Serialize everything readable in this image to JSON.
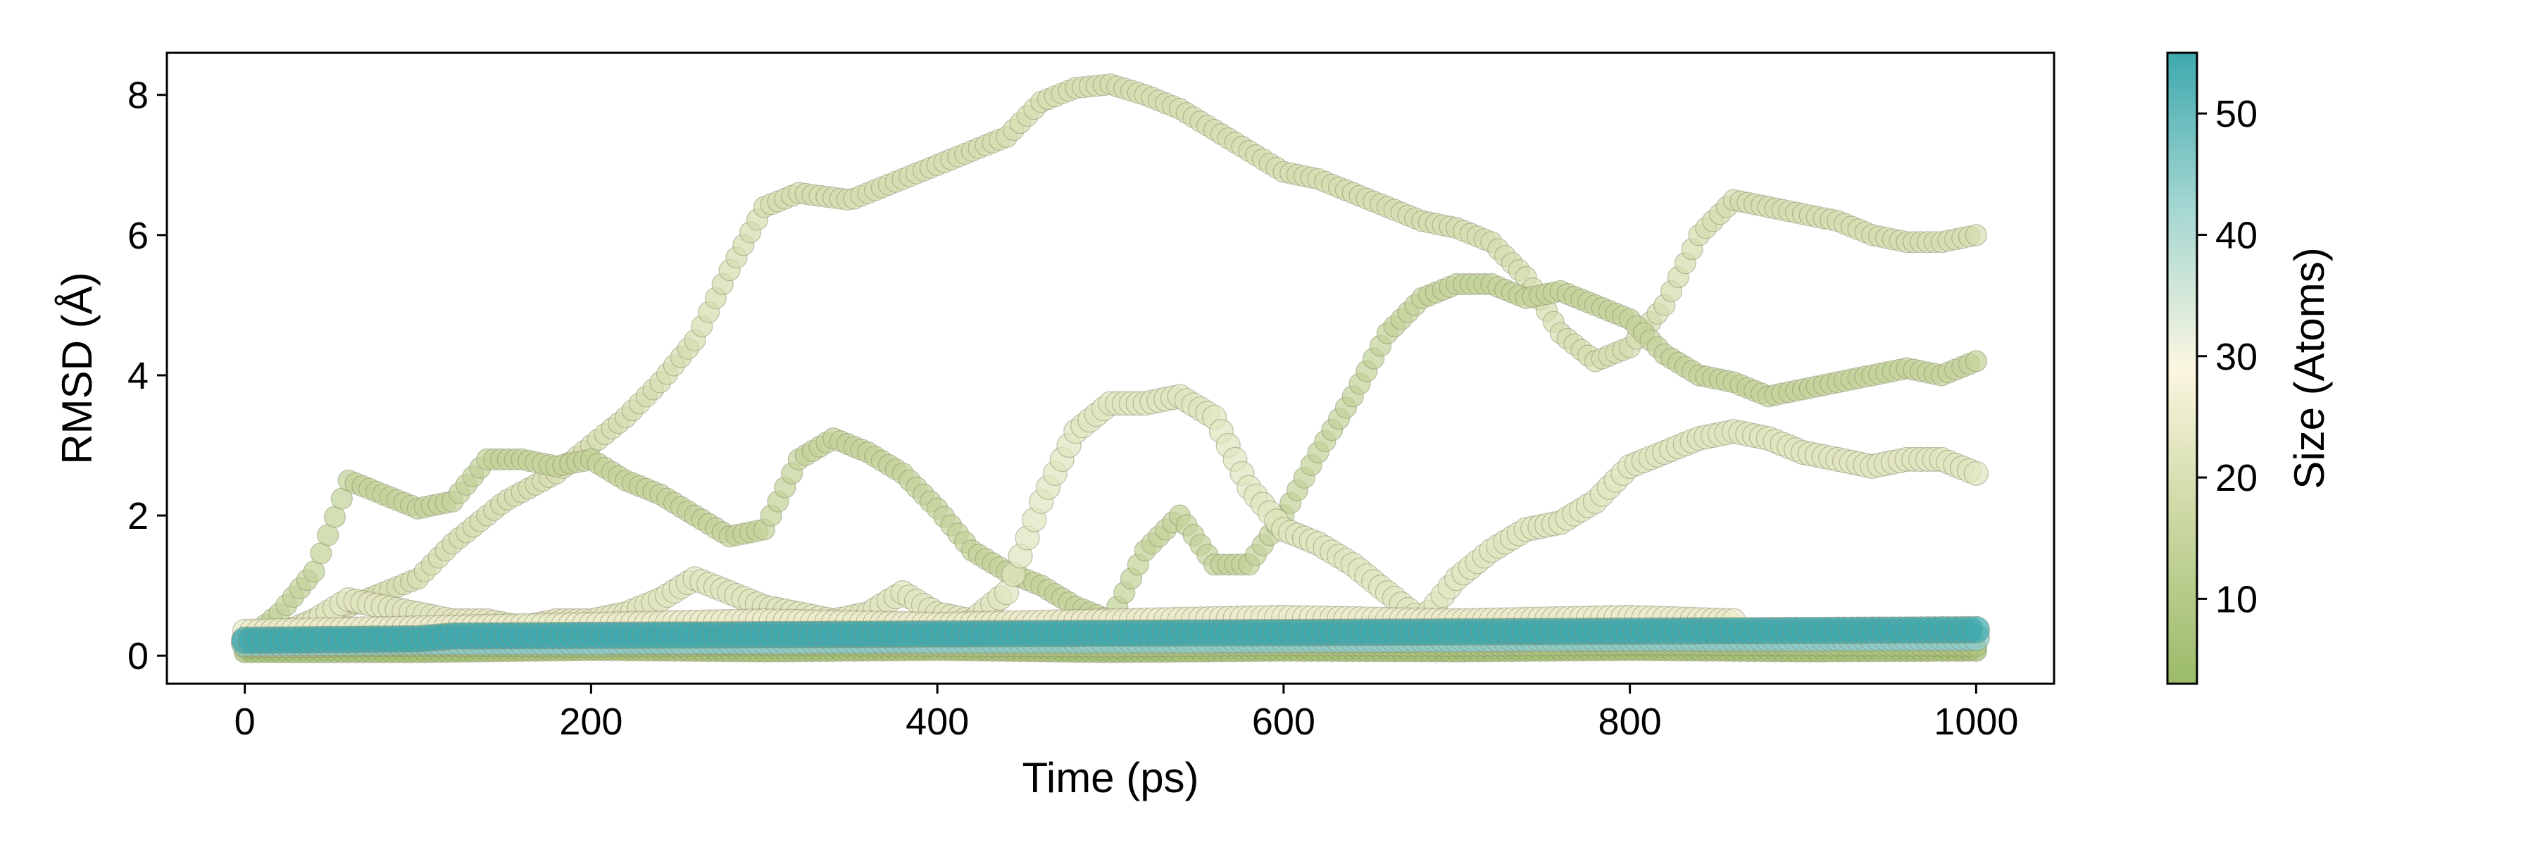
{
  "chart_data": {
    "type": "scatter",
    "title": "",
    "xlabel": "Time (ps)",
    "ylabel": "RMSD (Å)",
    "xlim": [
      -45,
      1045
    ],
    "ylim": [
      -0.4,
      8.6
    ],
    "xticks": [
      0,
      200,
      400,
      600,
      800,
      1000
    ],
    "yticks": [
      0,
      2,
      4,
      6,
      8
    ],
    "grid": false,
    "legend": "none",
    "colorbar": {
      "label": "Size (Atoms)",
      "range": [
        3,
        55
      ],
      "ticks": [
        10,
        20,
        30,
        40,
        50
      ],
      "colors": [
        "#9bbb6a",
        "#c9d6a0",
        "#fbf6e0",
        "#a6d7d2",
        "#3ea9ae"
      ]
    },
    "series": [
      {
        "size": 19,
        "x": [
          0,
          20,
          40,
          60,
          80,
          100,
          120,
          150,
          180,
          200,
          220,
          240,
          260,
          280,
          300,
          320,
          350,
          380,
          400,
          420,
          440,
          460,
          480,
          500,
          520,
          540,
          560,
          580,
          600,
          620,
          640,
          660,
          680,
          700,
          720,
          740,
          760,
          780,
          800,
          820,
          840,
          860,
          880,
          900,
          920,
          940,
          960,
          980,
          1000
        ],
        "y": [
          0.2,
          0.3,
          0.5,
          0.7,
          0.9,
          1.1,
          1.6,
          2.2,
          2.6,
          3.0,
          3.4,
          3.9,
          4.5,
          5.5,
          6.4,
          6.6,
          6.5,
          6.8,
          7.0,
          7.2,
          7.4,
          7.9,
          8.1,
          8.15,
          8.0,
          7.8,
          7.5,
          7.2,
          6.9,
          6.8,
          6.6,
          6.4,
          6.2,
          6.1,
          5.9,
          5.4,
          4.6,
          4.2,
          4.4,
          5.0,
          6.0,
          6.5,
          6.4,
          6.3,
          6.2,
          6.0,
          5.9,
          5.9,
          6.0
        ]
      },
      {
        "size": 14,
        "x": [
          0,
          20,
          40,
          60,
          80,
          100,
          120,
          140,
          160,
          180,
          200,
          220,
          240,
          260,
          280,
          300,
          320,
          340,
          360,
          380,
          400,
          420,
          440,
          460,
          480,
          500,
          520,
          540,
          560,
          580,
          600,
          620,
          640,
          660,
          680,
          700,
          720,
          740,
          760,
          780,
          800,
          820,
          840,
          860,
          880,
          900,
          920,
          940,
          960,
          980,
          1000
        ],
        "y": [
          0.2,
          0.6,
          1.2,
          2.5,
          2.3,
          2.1,
          2.2,
          2.8,
          2.8,
          2.7,
          2.8,
          2.5,
          2.3,
          2.0,
          1.7,
          1.8,
          2.8,
          3.1,
          2.9,
          2.6,
          2.1,
          1.5,
          1.2,
          1.0,
          0.7,
          0.5,
          1.5,
          2.0,
          1.3,
          1.3,
          2.0,
          2.9,
          3.7,
          4.6,
          5.1,
          5.3,
          5.3,
          5.1,
          5.2,
          5.0,
          4.8,
          4.3,
          4.0,
          3.9,
          3.7,
          3.8,
          3.9,
          4.0,
          4.1,
          4.0,
          4.2
        ]
      },
      {
        "size": 22,
        "x": [
          0,
          20,
          40,
          60,
          80,
          100,
          120,
          140,
          160,
          180,
          200,
          220,
          240,
          260,
          280,
          300,
          320,
          340,
          360,
          380,
          400,
          420,
          440,
          460,
          480,
          500,
          520,
          540,
          560,
          580,
          600,
          620,
          640,
          660,
          680,
          700,
          720,
          740,
          760,
          780,
          800,
          820,
          840,
          860,
          880,
          900,
          920,
          940,
          960,
          980,
          1000
        ],
        "y": [
          0.2,
          0.3,
          0.5,
          0.8,
          0.7,
          0.6,
          0.5,
          0.5,
          0.4,
          0.5,
          0.5,
          0.6,
          0.8,
          1.1,
          0.9,
          0.7,
          0.6,
          0.5,
          0.6,
          0.9,
          0.6,
          0.5,
          0.9,
          2.2,
          3.2,
          3.6,
          3.6,
          3.7,
          3.4,
          2.4,
          1.8,
          1.6,
          1.3,
          0.9,
          0.5,
          1.1,
          1.5,
          1.8,
          1.9,
          2.2,
          2.7,
          2.9,
          3.1,
          3.2,
          3.1,
          2.9,
          2.8,
          2.7,
          2.8,
          2.8,
          2.6
        ]
      },
      {
        "size": 25,
        "x": [
          0,
          100,
          200,
          300,
          400,
          500,
          600,
          700,
          800,
          860
        ],
        "y": [
          0.35,
          0.4,
          0.45,
          0.5,
          0.45,
          0.5,
          0.55,
          0.5,
          0.55,
          0.5
        ]
      },
      {
        "size": 4,
        "x": [
          0,
          100,
          200,
          300,
          400,
          500,
          600,
          700,
          800,
          900,
          1000
        ],
        "y": [
          0.05,
          0.05,
          0.08,
          0.06,
          0.08,
          0.05,
          0.07,
          0.06,
          0.08,
          0.06,
          0.07
        ]
      },
      {
        "size": 8,
        "x": [
          0,
          100,
          200,
          300,
          400,
          500,
          600,
          700,
          800,
          900,
          1000
        ],
        "y": [
          0.12,
          0.14,
          0.13,
          0.15,
          0.14,
          0.13,
          0.15,
          0.14,
          0.16,
          0.15,
          0.14
        ]
      },
      {
        "size": 45,
        "x": [
          0,
          100,
          200,
          300,
          400,
          500,
          600,
          700,
          800,
          900,
          1000
        ],
        "y": [
          0.18,
          0.2,
          0.2,
          0.21,
          0.22,
          0.22,
          0.23,
          0.24,
          0.25,
          0.25,
          0.26
        ]
      },
      {
        "size": 55,
        "x": [
          0,
          100,
          120,
          200,
          300,
          400,
          500,
          600,
          700,
          800,
          900,
          1000
        ],
        "y": [
          0.22,
          0.24,
          0.28,
          0.29,
          0.3,
          0.31,
          0.32,
          0.33,
          0.34,
          0.35,
          0.36,
          0.37
        ]
      }
    ]
  }
}
